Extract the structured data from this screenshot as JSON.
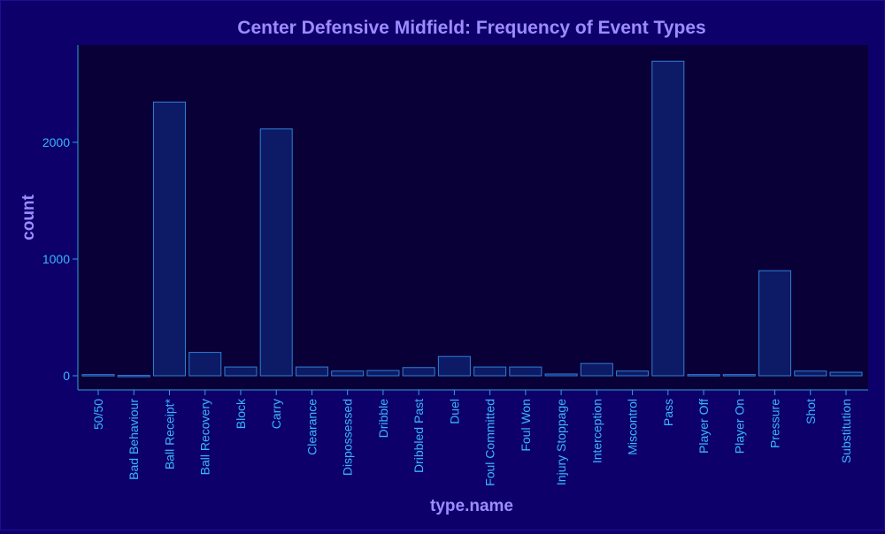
{
  "colors": {
    "page_bg": "#0e006b",
    "panel_bg": "#0a0038",
    "bar_fill": "#0d1a66",
    "bar_stroke": "#2f7fd6",
    "axis": "#2fa0e0",
    "tick_text": "#38b6ff",
    "title_text": "#9c8cff"
  },
  "chart_data": {
    "type": "bar",
    "title": "Center Defensive Midfield: Frequency of Event Types",
    "xlabel": "type.name",
    "ylabel": "count",
    "ylim": [
      -100,
      2850
    ],
    "yticks": [
      0,
      1000,
      2000
    ],
    "ytick_labels": [
      "0",
      "1000",
      "2000"
    ],
    "grid": false,
    "categories": [
      "50/50",
      "Bad Behaviour",
      "Ball Receipt*",
      "Ball Recovery",
      "Block",
      "Carry",
      "Clearance",
      "Dispossessed",
      "Dribble",
      "Dribbled Past",
      "Duel",
      "Foul Committed",
      "Foul Won",
      "Injury Stoppage",
      "Interception",
      "Miscontrol",
      "Pass",
      "Player Off",
      "Player On",
      "Pressure",
      "Shot",
      "Substitution"
    ],
    "values": [
      10,
      3,
      2345,
      200,
      75,
      2115,
      75,
      40,
      45,
      70,
      165,
      75,
      75,
      15,
      105,
      40,
      2695,
      10,
      10,
      900,
      40,
      30
    ]
  }
}
